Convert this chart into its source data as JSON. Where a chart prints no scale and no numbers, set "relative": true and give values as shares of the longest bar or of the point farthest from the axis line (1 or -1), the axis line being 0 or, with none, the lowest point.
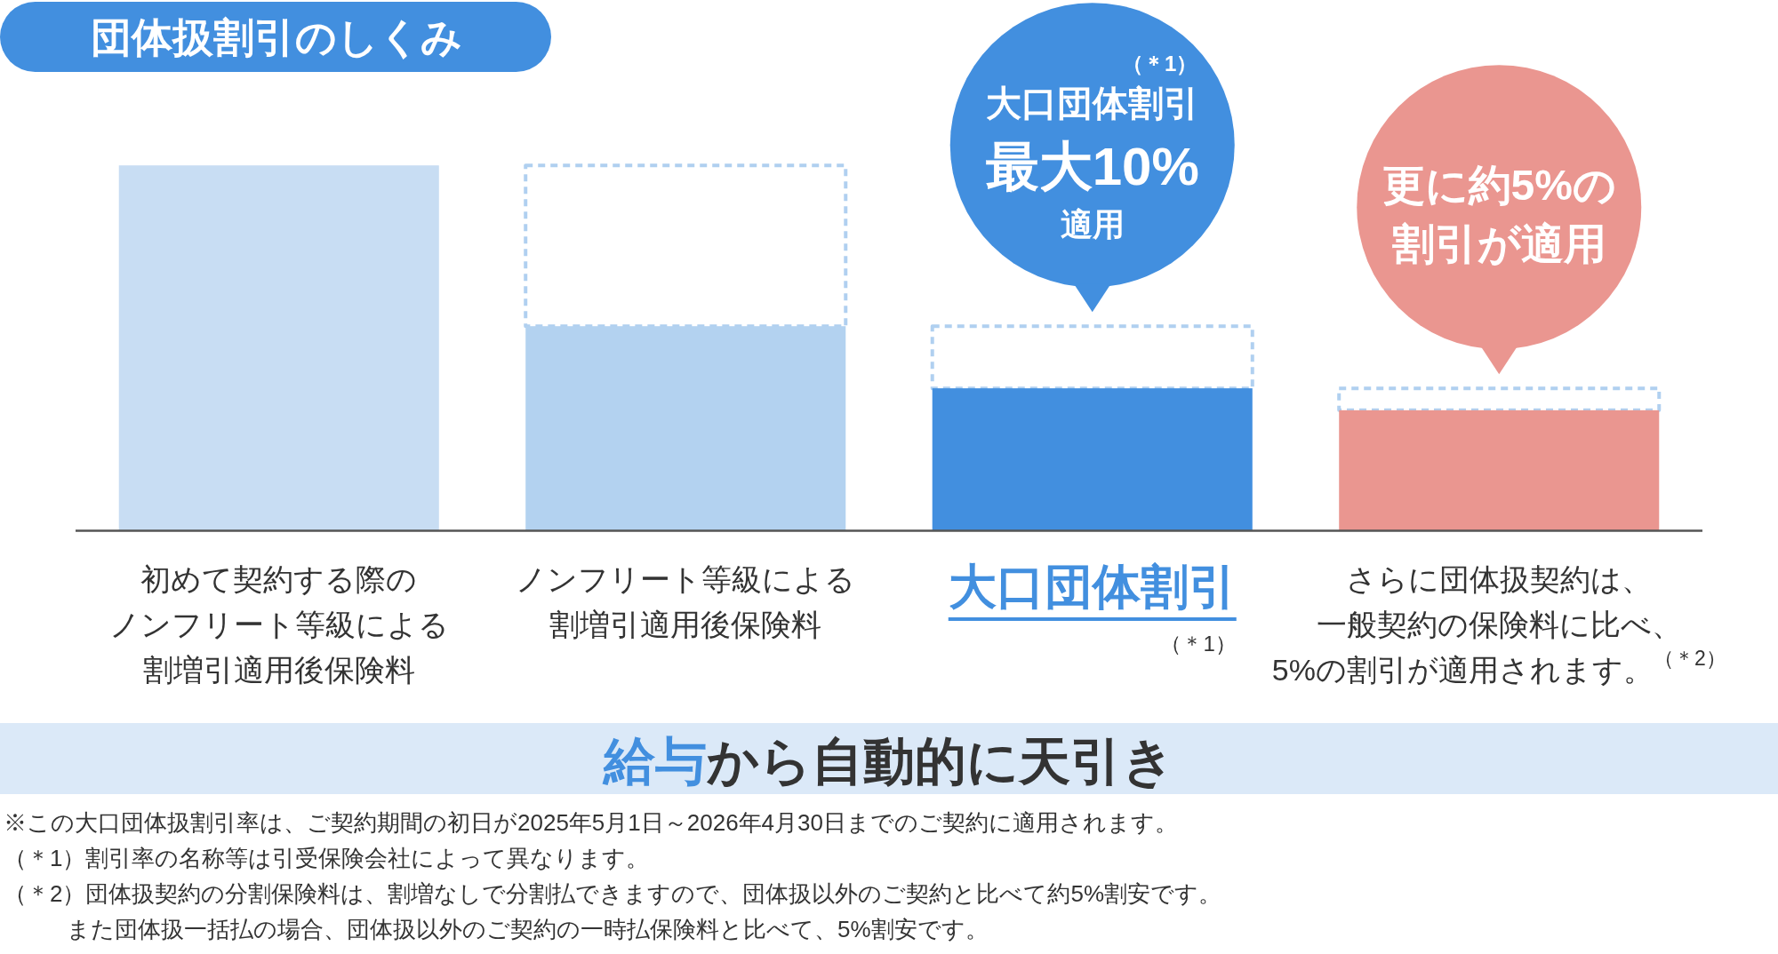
{
  "chart_data": {
    "type": "bar",
    "title": "団体扱割引のしくみ",
    "categories": [
      "初めて契約する際のノンフリート等級による割増引適用後保険料",
      "ノンフリート等級による割増引適用後保険料",
      "大口団体割引（＊1）",
      "さらに団体扱契約は、一般契約の保険料に比べ、5%の割引が適用されます。$^{（＊2）}$"
    ],
    "relative": true,
    "stacked": true,
    "series": [
      {
        "colors": [
          "#c8ddf3",
          "#b3d2f0",
          "#428fdf",
          "#ea9690"
        ],
        "values": [
          1,
          0.56,
          0.39,
          0.33
        ]
      },
      {
        "color": "#b0d0f0",
        "line_style": "dashed",
        "values": [
          null,
          0.44,
          0.17,
          0.06
        ]
      }
    ],
    "annotations": [
      {
        "text": "（＊1）大口団体割引最大10%適用",
        "x": "大口団体割引（＊1）",
        "y": 0.56
      },
      {
        "text": "更に約5%の割引が適用",
        "x": "さらに団体扱契約は、一般契約の保険料に比べ、5%の割引が適用されます。$^{（＊2）}$",
        "y": 0.39
      },
      "給与",
      "から自動的に天引き",
      "※この大口団体扱割引率は、ご契約期間の初日が2025年5月1日～2026年4月30日までのご契約に適用されます。",
      "（＊1）割引率の名称等は引受保険会社によって異なります。",
      "（＊2）団体扱契約の分割保険料は、割増なしで分割払できますので、団体扱以外のご契約と比べて約5%割安です。また団体扱一括払の場合、団体扱以外のご契約の一時払保険料と比べて、5%割安です。"
    ]
  }
}
